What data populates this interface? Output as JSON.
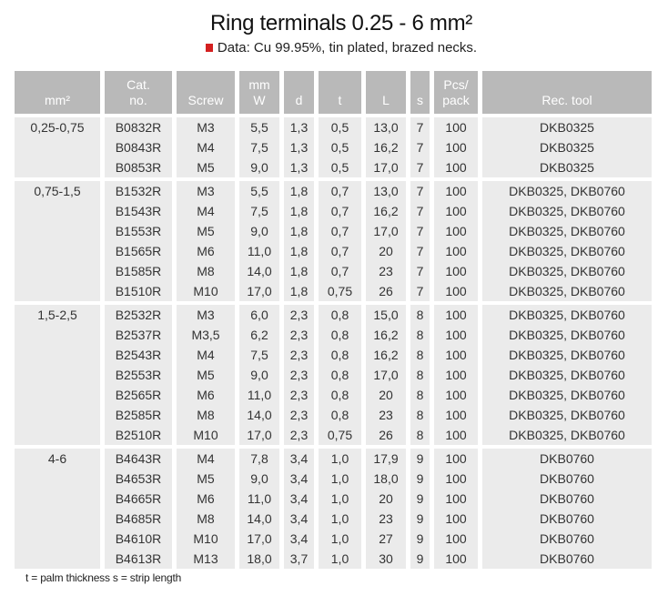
{
  "title": "Ring terminals 0.25 - 6 mm²",
  "subtitle": "Data: Cu 99.95%, tin plated, brazed necks.",
  "colors": {
    "bullet": "#d42020",
    "header_bg": "#b9b9b9",
    "row_bg": "#ebebeb"
  },
  "headers": [
    "mm²",
    "Cat.\nno.",
    "Screw",
    "mm\nW",
    "d",
    "t",
    "L",
    "s",
    "Pcs/\npack",
    "Rec. tool"
  ],
  "groups": [
    {
      "range": "0,25-0,75",
      "rows": [
        [
          "B0832R",
          "M3",
          "5,5",
          "1,3",
          "0,5",
          "13,0",
          "7",
          "100",
          "DKB0325"
        ],
        [
          "B0843R",
          "M4",
          "7,5",
          "1,3",
          "0,5",
          "16,2",
          "7",
          "100",
          "DKB0325"
        ],
        [
          "B0853R",
          "M5",
          "9,0",
          "1,3",
          "0,5",
          "17,0",
          "7",
          "100",
          "DKB0325"
        ]
      ]
    },
    {
      "range": "0,75-1,5",
      "rows": [
        [
          "B1532R",
          "M3",
          "5,5",
          "1,8",
          "0,7",
          "13,0",
          "7",
          "100",
          "DKB0325, DKB0760"
        ],
        [
          "B1543R",
          "M4",
          "7,5",
          "1,8",
          "0,7",
          "16,2",
          "7",
          "100",
          "DKB0325, DKB0760"
        ],
        [
          "B1553R",
          "M5",
          "9,0",
          "1,8",
          "0,7",
          "17,0",
          "7",
          "100",
          "DKB0325, DKB0760"
        ],
        [
          "B1565R",
          "M6",
          "11,0",
          "1,8",
          "0,7",
          "20",
          "7",
          "100",
          "DKB0325, DKB0760"
        ],
        [
          "B1585R",
          "M8",
          "14,0",
          "1,8",
          "0,7",
          "23",
          "7",
          "100",
          "DKB0325, DKB0760"
        ],
        [
          "B1510R",
          "M10",
          "17,0",
          "1,8",
          "0,75",
          "26",
          "7",
          "100",
          "DKB0325, DKB0760"
        ]
      ]
    },
    {
      "range": "1,5-2,5",
      "rows": [
        [
          "B2532R",
          "M3",
          "6,0",
          "2,3",
          "0,8",
          "15,0",
          "8",
          "100",
          "DKB0325, DKB0760"
        ],
        [
          "B2537R",
          "M3,5",
          "6,2",
          "2,3",
          "0,8",
          "16,2",
          "8",
          "100",
          "DKB0325, DKB0760"
        ],
        [
          "B2543R",
          "M4",
          "7,5",
          "2,3",
          "0,8",
          "16,2",
          "8",
          "100",
          "DKB0325, DKB0760"
        ],
        [
          "B2553R",
          "M5",
          "9,0",
          "2,3",
          "0,8",
          "17,0",
          "8",
          "100",
          "DKB0325, DKB0760"
        ],
        [
          "B2565R",
          "M6",
          "11,0",
          "2,3",
          "0,8",
          "20",
          "8",
          "100",
          "DKB0325, DKB0760"
        ],
        [
          "B2585R",
          "M8",
          "14,0",
          "2,3",
          "0,8",
          "23",
          "8",
          "100",
          "DKB0325, DKB0760"
        ],
        [
          "B2510R",
          "M10",
          "17,0",
          "2,3",
          "0,75",
          "26",
          "8",
          "100",
          "DKB0325, DKB0760"
        ]
      ]
    },
    {
      "range": "4-6",
      "rows": [
        [
          "B4643R",
          "M4",
          "7,8",
          "3,4",
          "1,0",
          "17,9",
          "9",
          "100",
          "DKB0760"
        ],
        [
          "B4653R",
          "M5",
          "9,0",
          "3,4",
          "1,0",
          "18,0",
          "9",
          "100",
          "DKB0760"
        ],
        [
          "B4665R",
          "M6",
          "11,0",
          "3,4",
          "1,0",
          "20",
          "9",
          "100",
          "DKB0760"
        ],
        [
          "B4685R",
          "M8",
          "14,0",
          "3,4",
          "1,0",
          "23",
          "9",
          "100",
          "DKB0760"
        ],
        [
          "B4610R",
          "M10",
          "17,0",
          "3,4",
          "1,0",
          "27",
          "9",
          "100",
          "DKB0760"
        ],
        [
          "B4613R",
          "M13",
          "18,0",
          "3,7",
          "1,0",
          "30",
          "9",
          "100",
          "DKB0760"
        ]
      ]
    }
  ],
  "footnote": "t = palm thickness   s = strip length"
}
